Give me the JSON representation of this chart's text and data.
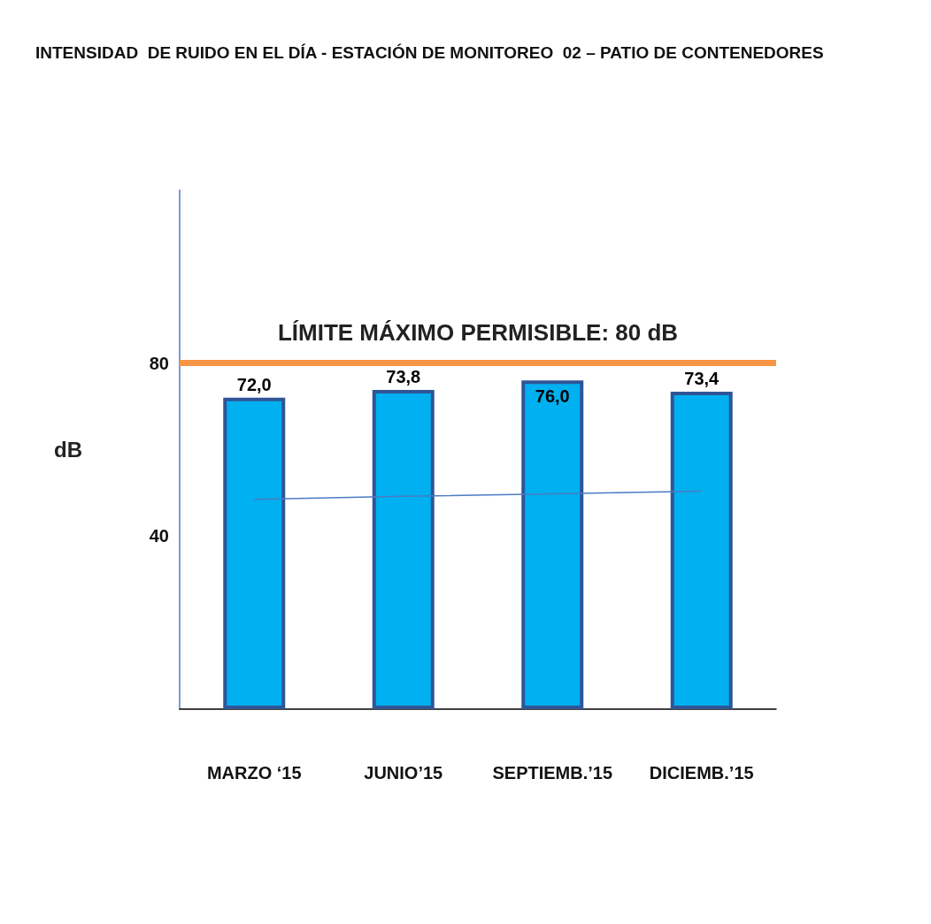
{
  "chart_data": {
    "type": "bar",
    "title": "INTENSIDAD  DE RUIDO EN EL DÍA - ESTACIÓN DE MONITOREO  02 – PATIO DE CONTENEDORES",
    "ylabel": "dB",
    "categories": [
      "MARZO ‘15",
      "JUNIO’15",
      "SEPTIEMB.’15",
      "DICIEMB.’15"
    ],
    "series": [
      {
        "color": "#00b0f0",
        "values": [
          72.0,
          73.8,
          76.0,
          73.4
        ],
        "value_labels": [
          "72,0",
          "73,8",
          "76,0",
          "73,4"
        ]
      },
      {
        "type": "line",
        "color": "#4a7cc4",
        "values": [
          48.5,
          49.2,
          49.8,
          50.4
        ],
        "marker": "none"
      }
    ],
    "ylim": [
      0,
      120
    ],
    "yticks": [
      40,
      80
    ],
    "grid": false,
    "ref_lines": [
      {
        "axis": "y",
        "value": 80,
        "label": "LÍMITE MÁXIMO PERMISIBLE: 80 dB",
        "color": "#f79646"
      }
    ]
  }
}
